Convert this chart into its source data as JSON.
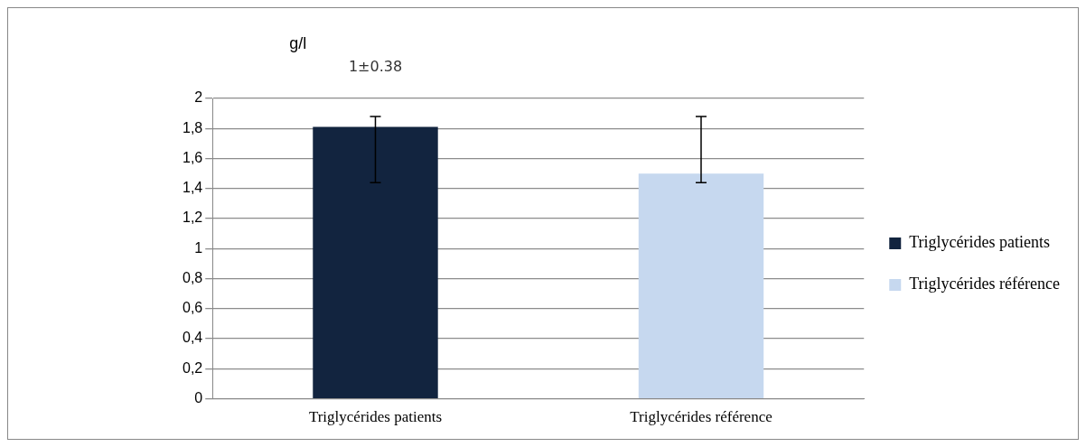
{
  "chart_data": {
    "type": "bar",
    "ylabel": "g/l",
    "categories": [
      "Triglycérides patients",
      "Triglycérides référence"
    ],
    "series": [
      {
        "name": "Triglycérides patients",
        "color": "#12243f",
        "values": [
          1.81,
          null
        ],
        "errors": [
          [
            1.44,
            1.88
          ],
          null
        ]
      },
      {
        "name": "Triglycérides référence",
        "color": "#c6d8ef",
        "values": [
          null,
          1.5
        ],
        "errors": [
          null,
          [
            1.44,
            1.88
          ]
        ]
      }
    ],
    "ylim": [
      0,
      2
    ],
    "yticks": [
      0,
      {
        "value": 0.2,
        "label": "0,2"
      },
      {
        "value": 0.4,
        "label": "0,4"
      },
      {
        "value": 0.6,
        "label": "0,6"
      },
      {
        "value": 0.8,
        "label": "0,8"
      },
      1,
      {
        "value": 1.2,
        "label": "1,2"
      },
      {
        "value": 1.4,
        "label": "1,4"
      },
      {
        "value": 1.6,
        "label": "1,6"
      },
      {
        "value": 1.8,
        "label": "1,8"
      },
      2
    ],
    "annotations": [
      "1±0.38"
    ],
    "grid": "y",
    "legend": "right"
  }
}
